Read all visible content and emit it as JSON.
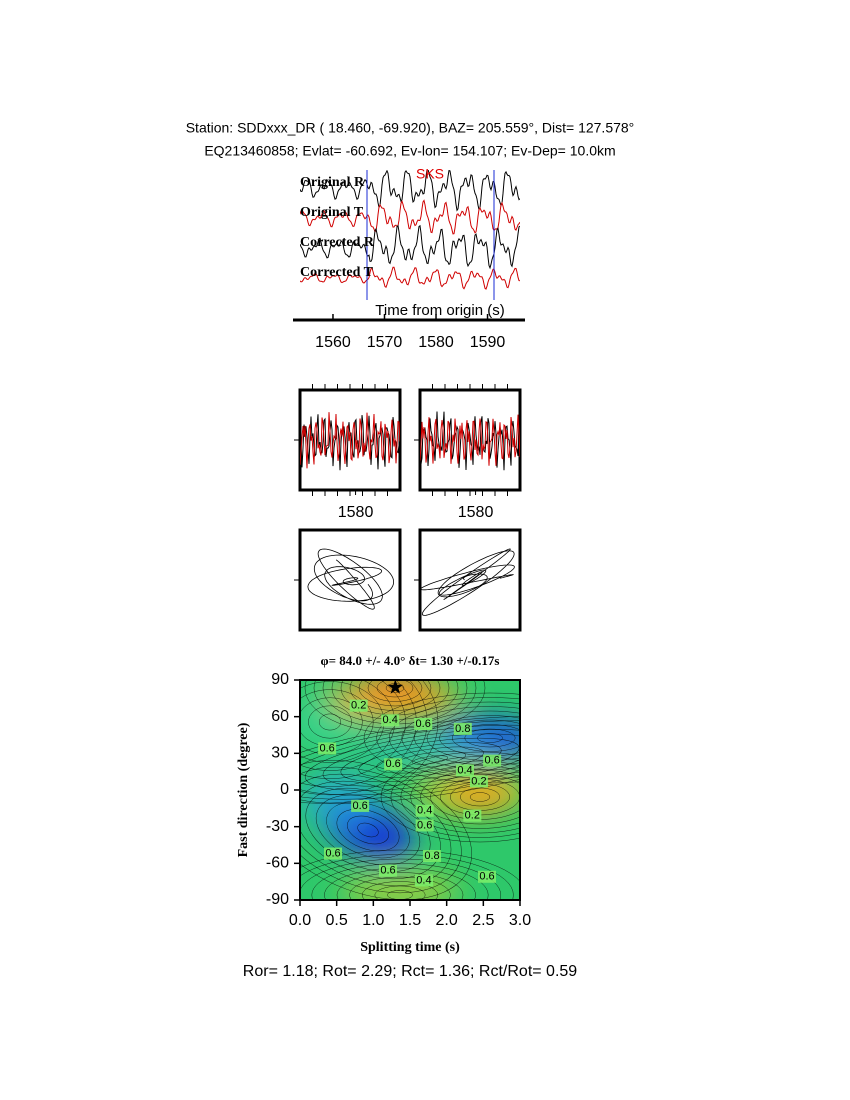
{
  "header": {
    "line1": "Station: SDDxxx_DR (  18.460,  -69.920), BAZ=  205.559°, Dist=  127.578°",
    "line2": "EQ213460858; Evlat= -60.692, Ev-lon= 154.107; Ev-Dep= 10.0km"
  },
  "traces": {
    "labels": [
      "Original R",
      "Original T",
      "Corrected R",
      "Corrected T"
    ],
    "phase": "SKS",
    "xlabel": "Time from origin (s)",
    "xlim": [
      1553.6,
      1596.3
    ],
    "xticks": [
      1560,
      1570,
      1580,
      1590
    ]
  },
  "windows": {
    "xlim": [
      1570,
      1588
    ],
    "xticks": [
      1580
    ]
  },
  "grid_search": {
    "title": "φ= 84.0 +/- 4.0° δt= 1.30 +/-0.17s",
    "xlabel": "Splitting time (s)",
    "ylabel": "Fast direction (degree)",
    "xlim": [
      0,
      3
    ],
    "ylim": [
      -90,
      90
    ],
    "xticks": [
      {
        "value": 0,
        "label": "0.0"
      },
      {
        "value": 0.5,
        "label": "0.5"
      },
      {
        "value": 1,
        "label": "1.0"
      },
      {
        "value": 1.5,
        "label": "1.5"
      },
      {
        "value": 2,
        "label": "2.0"
      },
      {
        "value": 2.5,
        "label": "2.5"
      },
      {
        "value": 3,
        "label": "3.0"
      }
    ],
    "yticks": [
      90,
      60,
      30,
      0,
      -30,
      -60,
      -90
    ],
    "best": {
      "dt": 1.3,
      "phi": 84
    },
    "contour_labels": [
      {
        "x": 0.8,
        "y": 69,
        "text": "0.2"
      },
      {
        "x": 1.23,
        "y": 57,
        "text": "0.4"
      },
      {
        "x": 1.68,
        "y": 54,
        "text": "0.6"
      },
      {
        "x": 2.22,
        "y": 50,
        "text": "0.8"
      },
      {
        "x": 0.37,
        "y": 34,
        "text": "0.6"
      },
      {
        "x": 1.27,
        "y": 21,
        "text": "0.6"
      },
      {
        "x": 2.25,
        "y": 16,
        "text": "0.4"
      },
      {
        "x": 2.62,
        "y": 24,
        "text": "0.6"
      },
      {
        "x": 2.44,
        "y": 7,
        "text": "0.2"
      },
      {
        "x": 0.82,
        "y": -13,
        "text": "0.6"
      },
      {
        "x": 1.7,
        "y": -17,
        "text": "0.4"
      },
      {
        "x": 1.7,
        "y": -29,
        "text": "0.6"
      },
      {
        "x": 2.35,
        "y": -21,
        "text": "0.2"
      },
      {
        "x": 0.45,
        "y": -52,
        "text": "0.6"
      },
      {
        "x": 1.8,
        "y": -54,
        "text": "0.8"
      },
      {
        "x": 1.2,
        "y": -66,
        "text": "0.6"
      },
      {
        "x": 1.69,
        "y": -74,
        "text": "0.4"
      },
      {
        "x": 2.55,
        "y": -71,
        "text": "0.6"
      }
    ]
  },
  "footer": "Ror= 1.18; Rot= 2.29; Rct= 1.36; Rct/Rot= 0.59"
}
